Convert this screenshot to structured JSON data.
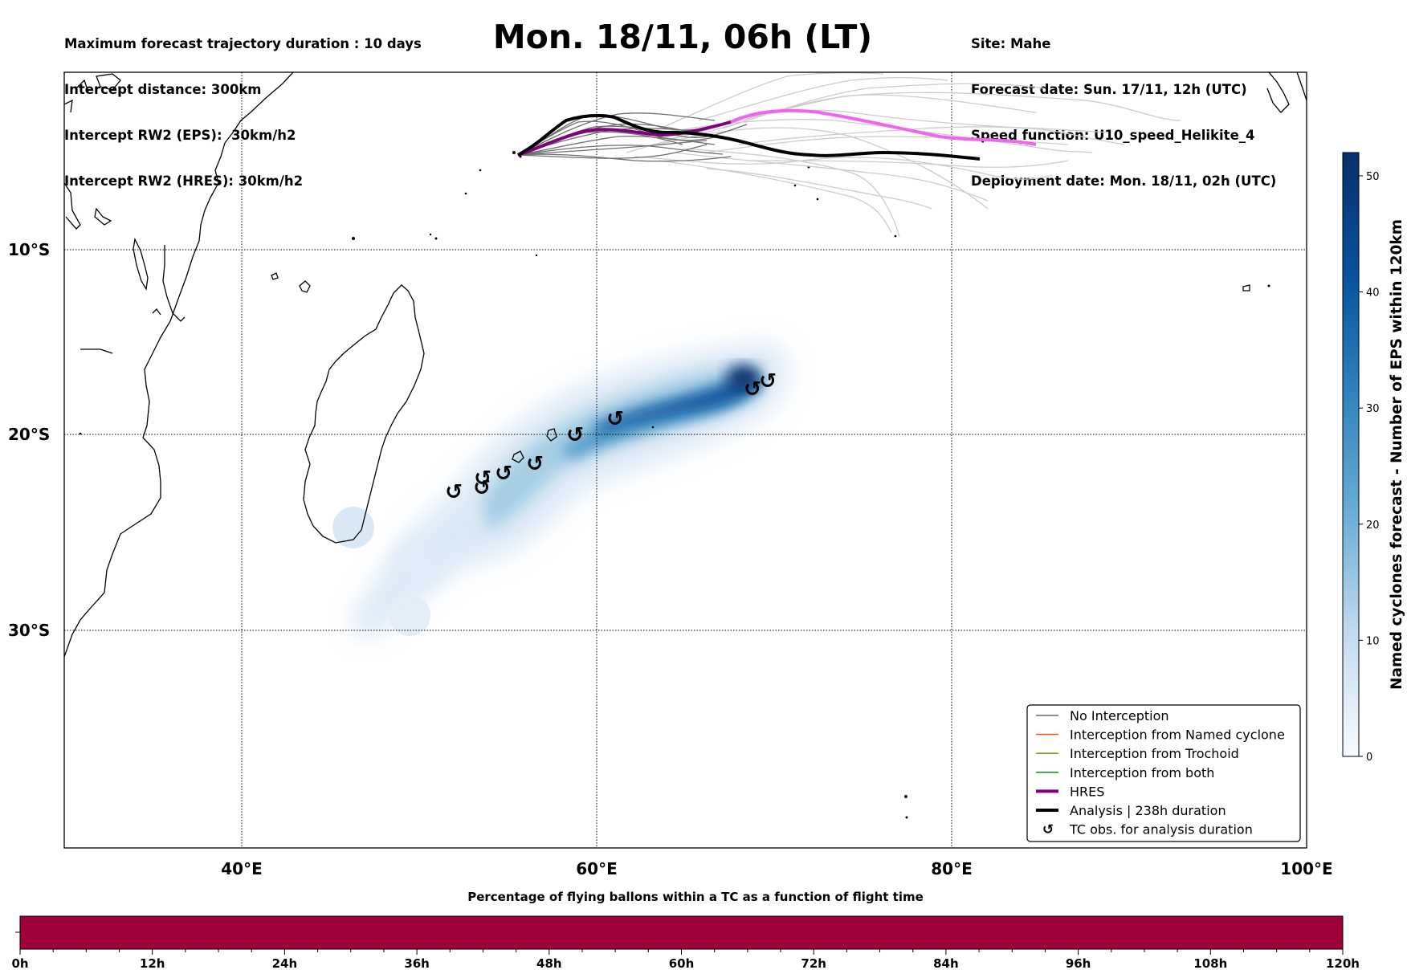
{
  "header": {
    "left_lines": [
      "Maximum forecast trajectory duration : 10 days",
      "Intercept distance: 300km",
      "Intercept RW2 (EPS):  30km/h2",
      "Intercept RW2 (HRES): 30km/h2"
    ],
    "right_lines": [
      "Site: Mahe",
      "Forecast date: Sun. 17/11, 12h (UTC)",
      "Speed function: U10_speed_Helikite_4",
      "Deployment date: Mon. 18/11, 02h (UTC)"
    ],
    "title": "Mon. 18/11, 06h (LT)"
  },
  "map": {
    "lat_labels": [
      "10°S",
      "20°S",
      "30°S"
    ],
    "lon_labels": [
      "40°E",
      "60°E",
      "80°E",
      "100°E"
    ],
    "colors": {
      "no_interception": "#666666",
      "named_cyclone": "#ff4500",
      "trochoid": "#808000",
      "both": "#008000",
      "hres": "#800080",
      "hres_late": "#ee66ee",
      "analysis": "#000000",
      "density_dark": "#08306b"
    }
  },
  "legend": {
    "items": [
      {
        "label": "No Interception",
        "color": "#666666",
        "kind": "line-thin"
      },
      {
        "label": "Interception from Named cyclone",
        "color": "#ff4500",
        "kind": "line-thin"
      },
      {
        "label": "Interception from Trochoid",
        "color": "#808000",
        "kind": "line-thin"
      },
      {
        "label": "Interception from both",
        "color": "#008000",
        "kind": "line-thin"
      },
      {
        "label": "HRES",
        "color": "#800080",
        "kind": "line-thick"
      },
      {
        "label": "Analysis | 238h duration",
        "color": "#000000",
        "kind": "line-thick"
      },
      {
        "label": "TC obs. for analysis duration",
        "color": "#000000",
        "kind": "tc-symbol"
      }
    ]
  },
  "colorbar": {
    "label": "Named cyclones forecast - Number of EPS within 120km",
    "ticks": [
      "0",
      "10",
      "20",
      "30",
      "40",
      "50"
    ],
    "range": [
      0,
      52
    ]
  },
  "timebar": {
    "title": "Percentage of flying ballons within a TC as a function of flight time",
    "ticks": [
      "0h",
      "12h",
      "24h",
      "36h",
      "48h",
      "60h",
      "72h",
      "84h",
      "96h",
      "108h",
      "120h"
    ],
    "fill_color": "#9e003a"
  },
  "tc_symbol": "↺"
}
